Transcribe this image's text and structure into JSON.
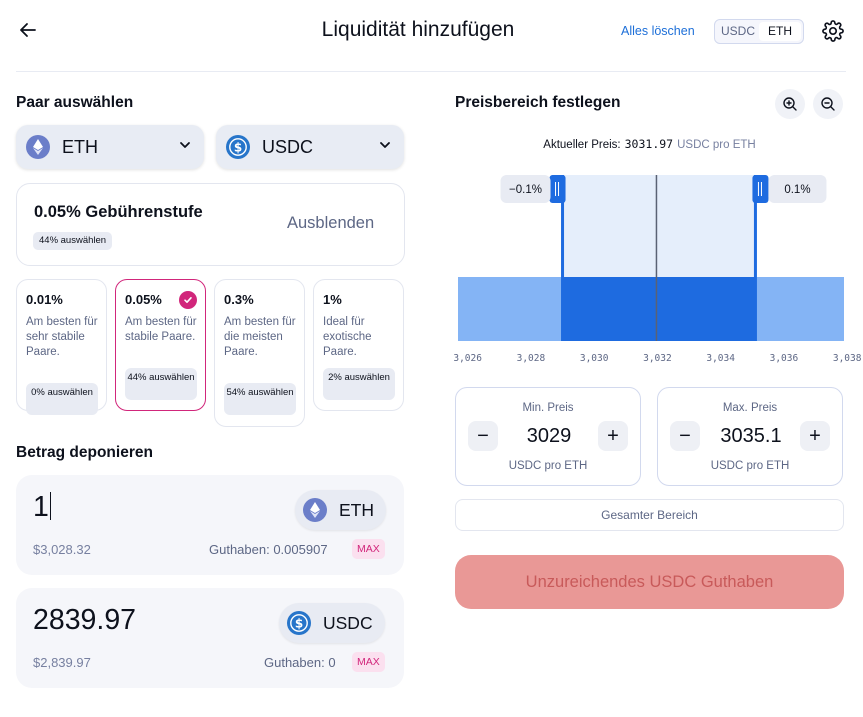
{
  "header": {
    "title": "Liquidität hinzufügen",
    "clear_all": "Alles löschen",
    "toggle": [
      "USDC",
      "ETH"
    ],
    "toggle_active": "ETH"
  },
  "pair": {
    "title": "Paar auswählen",
    "token_a": "ETH",
    "token_b": "USDC"
  },
  "fee": {
    "tier_title": "0.05% Gebührenstufe",
    "tier_badge": "44% auswählen",
    "hide": "Ausblenden",
    "options": [
      {
        "pct": "0.01%",
        "desc": "Am besten für sehr stabile Paare.",
        "badge": "0% auswählen"
      },
      {
        "pct": "0.05%",
        "desc": "Am besten für stabile Paare.",
        "badge": "44% auswählen",
        "selected": true
      },
      {
        "pct": "0.3%",
        "desc": "Am besten für die meisten Paare.",
        "badge": "54% auswählen"
      },
      {
        "pct": "1%",
        "desc": "Ideal für exotische Paare.",
        "badge": "2% auswählen"
      }
    ]
  },
  "deposit": {
    "title": "Betrag deponieren",
    "eth": {
      "amount": "1",
      "usd": "$3,028.32",
      "token": "ETH",
      "balance": "Guthaben: 0.005907",
      "max": "MAX"
    },
    "usdc": {
      "amount": "2839.97",
      "usd": "$2,839.97",
      "token": "USDC",
      "balance": "Guthaben: 0",
      "max": "MAX"
    }
  },
  "range": {
    "title": "Preisbereich festlegen",
    "current_label": "Aktueller Preis:",
    "current_value": "3031.97",
    "current_unit": "USDC pro ETH",
    "min": {
      "label": "Min. Preis",
      "value": "3029",
      "unit": "USDC pro ETH"
    },
    "max": {
      "label": "Max. Preis",
      "value": "3035.1",
      "unit": "USDC pro ETH"
    },
    "full_range": "Gesamter Bereich"
  },
  "chart_data": {
    "type": "area",
    "title": "",
    "x_range": [
      3025.6,
      3037.9
    ],
    "x_ticks": [
      3026,
      3028,
      3030,
      3032,
      3034,
      3036,
      3038
    ],
    "x_tick_labels": [
      "3,026",
      "3,028",
      "3,030",
      "3,032",
      "3,034",
      "3,036",
      "3,038"
    ],
    "current_price": 3031.97,
    "selected_min": 3029,
    "selected_max": 3035.1,
    "min_label": "−0.1%",
    "max_label": "0.1%",
    "liquidity_depth": "uniform",
    "xlabel": "",
    "ylabel": ""
  },
  "submit": {
    "label": "Unzureichendes USDC Guthaben"
  },
  "colors": {
    "accent": "#d1267b",
    "blue": "#1d6fd8",
    "error_bg": "#e99896",
    "error_text": "#c85a5a"
  }
}
